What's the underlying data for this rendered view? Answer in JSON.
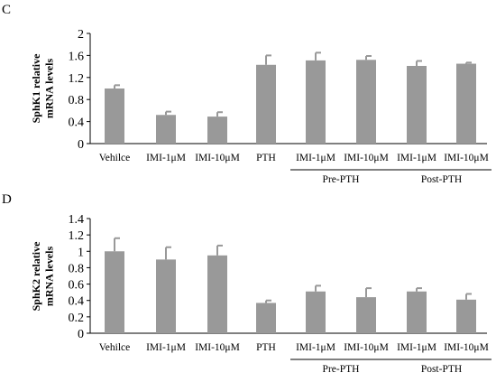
{
  "chart_data": [
    {
      "panel": "C",
      "type": "bar",
      "ylabel": [
        "SphK1 relative",
        "mRNA levels"
      ],
      "ylim": [
        0,
        2
      ],
      "yticks": [
        "0",
        "0.4",
        "0.8",
        "1.2",
        "1.6",
        "2"
      ],
      "categories": [
        "Vehilce",
        "IMI-1μM",
        "IMI-10μM",
        "PTH",
        "IMI-1μM",
        "IMI-10μM",
        "IMI-1μM",
        "IMI-10μM"
      ],
      "values": [
        1.0,
        0.52,
        0.49,
        1.43,
        1.51,
        1.52,
        1.41,
        1.45
      ],
      "errors": [
        0.06,
        0.06,
        0.08,
        0.17,
        0.14,
        0.07,
        0.09,
        0.02
      ],
      "groups": [
        {
          "label": "Pre-PTH",
          "categories": [
            4,
            5
          ]
        },
        {
          "label": "Post-PTH",
          "categories": [
            6,
            7
          ]
        }
      ],
      "bar_color": "#999999",
      "grid": false
    },
    {
      "panel": "D",
      "type": "bar",
      "ylabel": [
        "SphK2 relative",
        "mRNA levels"
      ],
      "ylim": [
        0,
        1.4
      ],
      "yticks": [
        "0",
        "0.2",
        "0.4",
        "0.6",
        "0.8",
        "1",
        "1.2",
        "1.4"
      ],
      "categories": [
        "Vehilce",
        "IMI-1μM",
        "IMI-10μM",
        "PTH",
        "IMI-1μM",
        "IMI-10μM",
        "IMI-1μM",
        "IMI-10μM"
      ],
      "values": [
        1.0,
        0.9,
        0.95,
        0.37,
        0.51,
        0.44,
        0.51,
        0.41
      ],
      "errors": [
        0.16,
        0.15,
        0.12,
        0.03,
        0.07,
        0.11,
        0.04,
        0.07
      ],
      "groups": [
        {
          "label": "Pre-PTH",
          "categories": [
            4,
            5
          ]
        },
        {
          "label": "Post-PTH",
          "categories": [
            6,
            7
          ]
        }
      ],
      "bar_color": "#999999",
      "grid": false
    }
  ]
}
